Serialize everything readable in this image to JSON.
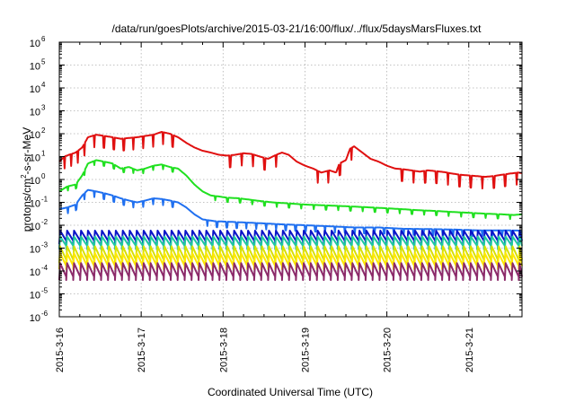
{
  "chart_data": {
    "type": "line",
    "title": "/data/run/goesPlots/archive/2015-03-21/16:00/flux/../flux/5daysMarsFluxes.txt",
    "xlabel": "Coordinated Universal Time (UTC)",
    "ylabel_parts": [
      "protons/cm",
      "2",
      "-s-sr-MeV"
    ],
    "yscale": "log",
    "ylim_exp": [
      -6,
      6
    ],
    "y_ticks": [
      {
        "mantissa": "10",
        "exp": "-6",
        "value_exp": -6
      },
      {
        "mantissa": "10",
        "exp": "-5",
        "value_exp": -5
      },
      {
        "mantissa": "10",
        "exp": "-4",
        "value_exp": -4
      },
      {
        "mantissa": "10",
        "exp": "-3",
        "value_exp": -3
      },
      {
        "mantissa": "10",
        "exp": "-2",
        "value_exp": -2
      },
      {
        "mantissa": "10",
        "exp": "-1",
        "value_exp": -1
      },
      {
        "mantissa": "10",
        "exp": "0",
        "value_exp": 0
      },
      {
        "mantissa": "10",
        "exp": "1",
        "value_exp": 1
      },
      {
        "mantissa": "10",
        "exp": "2",
        "value_exp": 2
      },
      {
        "mantissa": "10",
        "exp": "3",
        "value_exp": 3
      },
      {
        "mantissa": "10",
        "exp": "4",
        "value_exp": 4
      },
      {
        "mantissa": "10",
        "exp": "5",
        "value_exp": 5
      },
      {
        "mantissa": "10",
        "exp": "6",
        "value_exp": 6
      }
    ],
    "x_ticks": [
      {
        "label": "2015-3-16",
        "day": 16
      },
      {
        "label": "2015-3-17",
        "day": 17
      },
      {
        "label": "2015-3-18",
        "day": 18
      },
      {
        "label": "2015-3-19",
        "day": 19
      },
      {
        "label": "2015-3-20",
        "day": 20
      },
      {
        "label": "2015-3-21",
        "day": 21
      }
    ],
    "xlim_day": [
      16,
      21.65
    ],
    "grid": true,
    "series": [
      {
        "color": "#e01010",
        "style": "envelope",
        "points": [
          [
            16.0,
            6
          ],
          [
            16.06,
            10
          ],
          [
            16.12,
            12
          ],
          [
            16.2,
            15
          ],
          [
            16.28,
            25
          ],
          [
            16.35,
            70
          ],
          [
            16.45,
            90
          ],
          [
            16.55,
            80
          ],
          [
            16.65,
            70
          ],
          [
            16.75,
            60
          ],
          [
            16.85,
            65
          ],
          [
            16.95,
            70
          ],
          [
            17.05,
            80
          ],
          [
            17.15,
            90
          ],
          [
            17.25,
            120
          ],
          [
            17.35,
            100
          ],
          [
            17.45,
            70
          ],
          [
            17.55,
            40
          ],
          [
            17.65,
            25
          ],
          [
            17.75,
            18
          ],
          [
            17.85,
            15
          ],
          [
            17.95,
            12
          ],
          [
            18.05,
            11
          ],
          [
            18.15,
            12
          ],
          [
            18.25,
            14
          ],
          [
            18.35,
            13
          ],
          [
            18.45,
            10
          ],
          [
            18.55,
            8
          ],
          [
            18.65,
            12
          ],
          [
            18.72,
            15
          ],
          [
            18.8,
            12
          ],
          [
            18.9,
            6
          ],
          [
            19.0,
            4
          ],
          [
            19.1,
            3
          ],
          [
            19.2,
            2
          ],
          [
            19.3,
            2.5
          ],
          [
            19.38,
            2
          ],
          [
            19.42,
            5
          ],
          [
            19.5,
            7
          ],
          [
            19.55,
            22
          ],
          [
            19.6,
            28
          ],
          [
            19.7,
            15
          ],
          [
            19.8,
            8
          ],
          [
            19.9,
            6
          ],
          [
            20.0,
            4
          ],
          [
            20.1,
            3
          ],
          [
            20.2,
            2.8
          ],
          [
            20.3,
            2.5
          ],
          [
            20.4,
            2.2
          ],
          [
            20.5,
            2.5
          ],
          [
            20.6,
            2.3
          ],
          [
            20.7,
            2.1
          ],
          [
            20.8,
            1.8
          ],
          [
            20.9,
            1.6
          ],
          [
            21.0,
            1.5
          ],
          [
            21.1,
            1.4
          ],
          [
            21.2,
            1.3
          ],
          [
            21.3,
            1.4
          ],
          [
            21.4,
            1.6
          ],
          [
            21.5,
            1.8
          ],
          [
            21.6,
            2.0
          ],
          [
            21.65,
            1.9
          ]
        ],
        "sawtooth": [
          16.06,
          16.14,
          16.22,
          16.3,
          16.42,
          16.54,
          16.66,
          16.78,
          16.9,
          17.02,
          17.14,
          17.26,
          17.38,
          18.08,
          18.22,
          18.36,
          18.5,
          18.64,
          19.15,
          19.28,
          19.42,
          19.56,
          20.18,
          20.32,
          20.46,
          20.6,
          20.74,
          20.88,
          21.02,
          21.16,
          21.3,
          21.44,
          21.58
        ],
        "drop": 0.3
      },
      {
        "color": "#20e020",
        "style": "envelope",
        "points": [
          [
            16.0,
            0.3
          ],
          [
            16.1,
            0.5
          ],
          [
            16.2,
            0.6
          ],
          [
            16.28,
            1.5
          ],
          [
            16.35,
            5
          ],
          [
            16.45,
            7
          ],
          [
            16.55,
            6
          ],
          [
            16.65,
            5
          ],
          [
            16.75,
            3
          ],
          [
            16.85,
            3.5
          ],
          [
            16.95,
            2.5
          ],
          [
            17.05,
            3
          ],
          [
            17.15,
            4
          ],
          [
            17.25,
            4.5
          ],
          [
            17.35,
            3.5
          ],
          [
            17.45,
            3
          ],
          [
            17.55,
            1.5
          ],
          [
            17.65,
            0.6
          ],
          [
            17.75,
            0.3
          ],
          [
            17.85,
            0.2
          ],
          [
            17.95,
            0.18
          ],
          [
            18.05,
            0.16
          ],
          [
            18.2,
            0.15
          ],
          [
            18.4,
            0.12
          ],
          [
            18.6,
            0.1
          ],
          [
            18.8,
            0.09
          ],
          [
            19.0,
            0.08
          ],
          [
            19.2,
            0.075
          ],
          [
            19.4,
            0.07
          ],
          [
            19.6,
            0.065
          ],
          [
            19.8,
            0.06
          ],
          [
            20.0,
            0.055
          ],
          [
            20.2,
            0.05
          ],
          [
            20.4,
            0.045
          ],
          [
            20.6,
            0.042
          ],
          [
            20.8,
            0.038
          ],
          [
            21.0,
            0.035
          ],
          [
            21.2,
            0.032
          ],
          [
            21.4,
            0.03
          ],
          [
            21.55,
            0.028
          ],
          [
            21.65,
            0.03
          ]
        ],
        "sawtooth": [
          16.1,
          16.2,
          16.3,
          16.42,
          16.54,
          16.66,
          16.78,
          16.9,
          17.02,
          17.14,
          17.26,
          17.38,
          17.9,
          18.05,
          18.2,
          18.35,
          18.5,
          18.65,
          18.8,
          18.95,
          19.1,
          19.25,
          19.4,
          19.55,
          19.7,
          19.85,
          20.0,
          20.15,
          20.3,
          20.45,
          20.6,
          20.75,
          20.9,
          21.05,
          21.2,
          21.35,
          21.5
        ],
        "drop": 0.65
      },
      {
        "color": "#2070f0",
        "style": "envelope",
        "points": [
          [
            16.0,
            0.05
          ],
          [
            16.1,
            0.06
          ],
          [
            16.2,
            0.08
          ],
          [
            16.28,
            0.2
          ],
          [
            16.35,
            0.35
          ],
          [
            16.45,
            0.3
          ],
          [
            16.55,
            0.25
          ],
          [
            16.65,
            0.2
          ],
          [
            16.75,
            0.15
          ],
          [
            16.85,
            0.12
          ],
          [
            16.95,
            0.1
          ],
          [
            17.05,
            0.12
          ],
          [
            17.15,
            0.15
          ],
          [
            17.25,
            0.14
          ],
          [
            17.35,
            0.12
          ],
          [
            17.45,
            0.1
          ],
          [
            17.55,
            0.06
          ],
          [
            17.65,
            0.03
          ],
          [
            17.75,
            0.018
          ],
          [
            17.9,
            0.015
          ],
          [
            18.1,
            0.014
          ],
          [
            18.3,
            0.013
          ],
          [
            18.5,
            0.012
          ],
          [
            18.7,
            0.011
          ],
          [
            19.0,
            0.01
          ],
          [
            19.3,
            0.009
          ],
          [
            19.6,
            0.008
          ],
          [
            19.9,
            0.008
          ],
          [
            20.2,
            0.007
          ],
          [
            20.5,
            0.0068
          ],
          [
            20.8,
            0.0065
          ],
          [
            21.1,
            0.006
          ],
          [
            21.4,
            0.006
          ],
          [
            21.65,
            0.0058
          ]
        ],
        "sawtooth": [
          16.1,
          16.2,
          16.3,
          16.42,
          16.54,
          16.66,
          16.78,
          16.9,
          17.02,
          17.14,
          17.26,
          17.38,
          17.8,
          17.92,
          18.04,
          18.16,
          18.28,
          18.4,
          18.52,
          18.64,
          18.76,
          18.88,
          19.0,
          19.12,
          19.24,
          19.36,
          19.48,
          19.6,
          19.72,
          19.84,
          19.96,
          20.08,
          20.2,
          20.32,
          20.44,
          20.56,
          20.68,
          20.8,
          20.92,
          21.04,
          21.16,
          21.28,
          21.4,
          21.52,
          21.64
        ],
        "drop": 0.55
      },
      {
        "color": "#0a14c8",
        "style": "periodic",
        "hi": 0.0058,
        "lo": 0.0015,
        "period": 0.085
      },
      {
        "color": "#20c8a0",
        "style": "periodic",
        "hi": 0.0032,
        "lo": 0.0009,
        "period": 0.085
      },
      {
        "color": "#d8e000",
        "style": "periodic",
        "hi": 0.0012,
        "lo": 0.00022,
        "period": 0.085
      },
      {
        "color": "#ffe800",
        "style": "periodic",
        "hi": 0.0006,
        "lo": 0.00012,
        "period": 0.085
      },
      {
        "color": "#8c2a6a",
        "style": "periodic",
        "hi": 0.00022,
        "lo": 4e-05,
        "period": 0.085
      }
    ]
  }
}
